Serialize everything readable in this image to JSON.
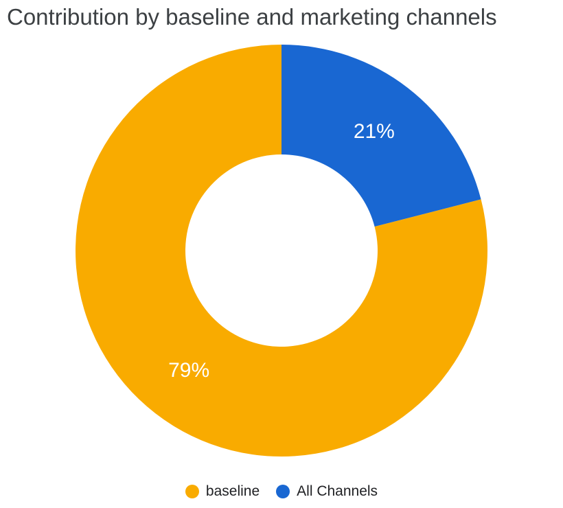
{
  "chart_data": {
    "type": "pie",
    "donut": true,
    "title": "Contribution by baseline and marketing channels",
    "slices": [
      {
        "name": "All Channels",
        "value": 21,
        "label": "21%",
        "color": "#1967D2"
      },
      {
        "name": "baseline",
        "value": 79,
        "label": "79%",
        "color": "#F9AB00"
      }
    ],
    "legend": {
      "placement": "bottom",
      "order": [
        "baseline",
        "All Channels"
      ]
    }
  }
}
